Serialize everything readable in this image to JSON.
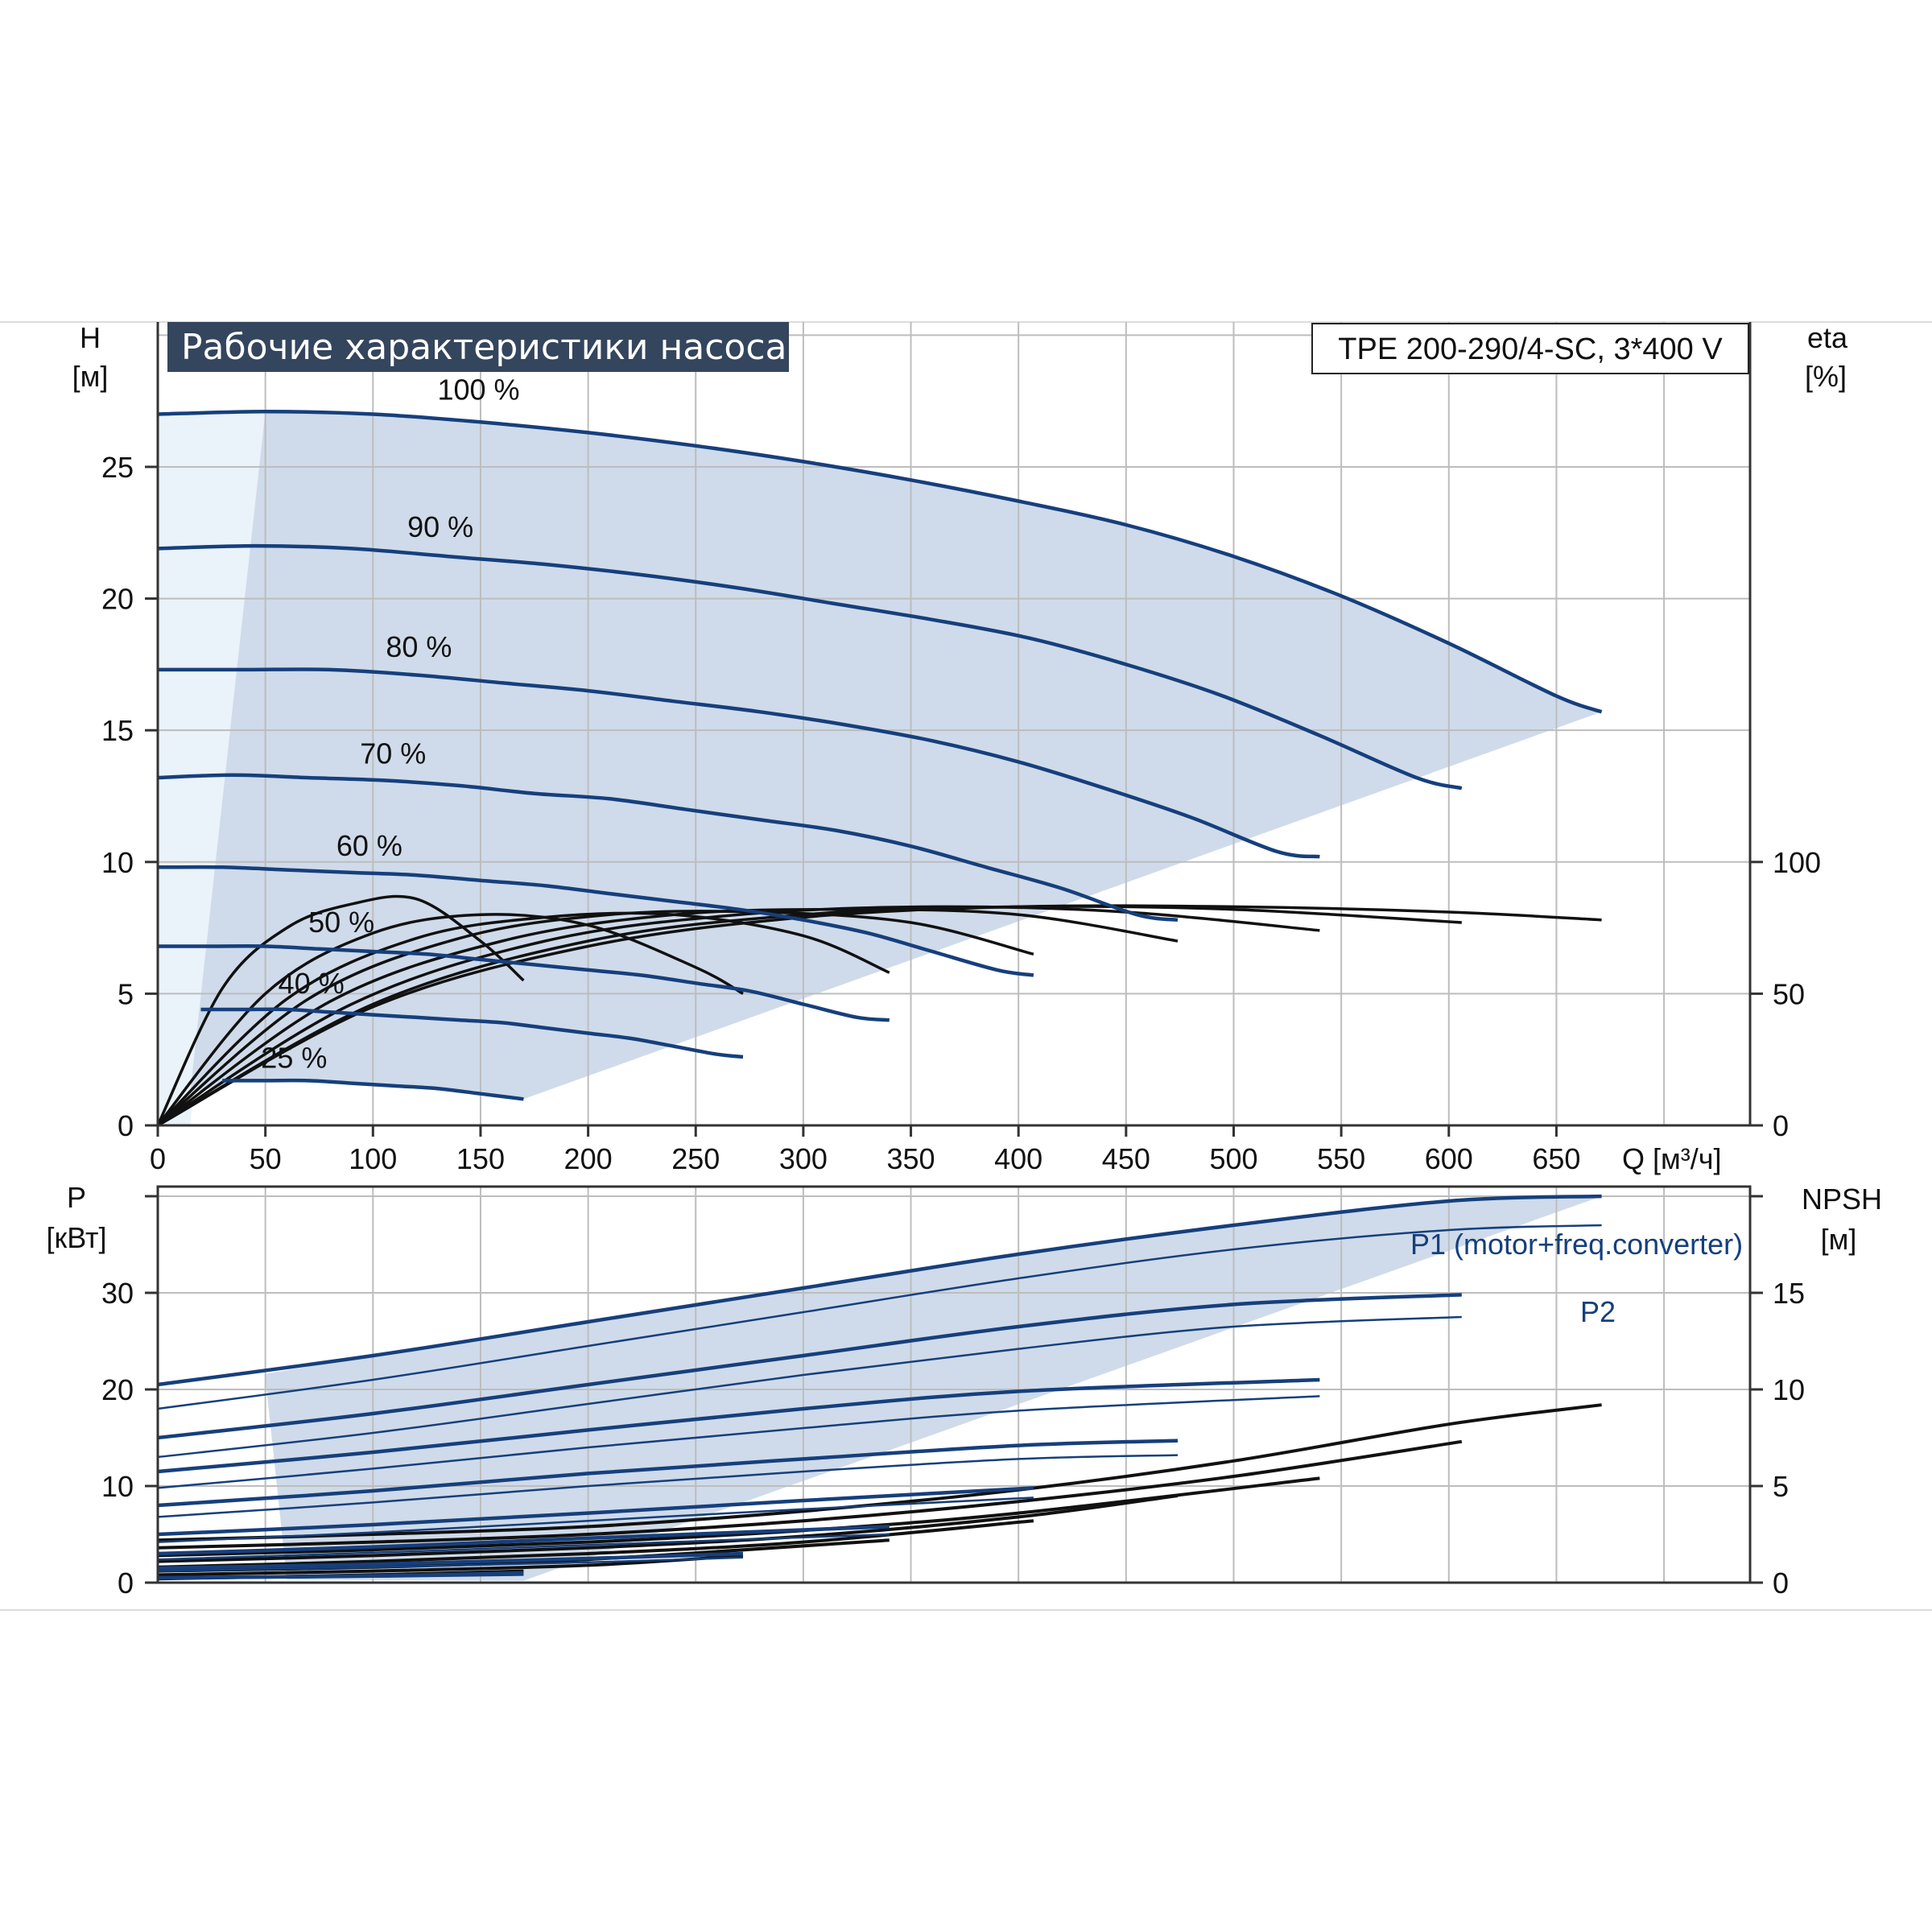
{
  "title": "Рабочие характеристики насоса",
  "model": "TPE 200-290/4-SC, 3*400 V",
  "colors": {
    "curve": "#163f7c",
    "band": "#cfdbea",
    "band_light": "#eaf2fa",
    "grid": "#bdbdbd",
    "eff": "#111111",
    "title_bg": "#34455e"
  },
  "chart_data": [
    {
      "id": "head",
      "type": "line",
      "title": "Рабочие характеристики насоса",
      "xlabel": "Q [м³/ч]",
      "ylabel": "H",
      "ylabel_unit": "[м]",
      "y2label": "eta",
      "y2label_unit": "[%]",
      "xlim": [
        0,
        740
      ],
      "ylim": [
        0,
        30.5
      ],
      "x_ticks": [
        "0",
        "50",
        "100",
        "150",
        "200",
        "250",
        "300",
        "350",
        "400",
        "450",
        "500",
        "550",
        "600",
        "650"
      ],
      "y_ticks": [
        "0",
        "5",
        "10",
        "15",
        "20",
        "25"
      ],
      "y2_ticks": [
        "0",
        "50",
        "100"
      ],
      "grid": true,
      "series": [
        {
          "name": "100 %",
          "x": [
            0,
            50,
            100,
            150,
            200,
            250,
            300,
            350,
            400,
            450,
            500,
            550,
            600,
            650,
            671
          ],
          "y": [
            27.0,
            27.1,
            27.0,
            26.7,
            26.3,
            25.8,
            25.2,
            24.5,
            23.7,
            22.8,
            21.6,
            20.1,
            18.3,
            16.3,
            15.7
          ]
        },
        {
          "name": "90 %",
          "x": [
            0,
            45,
            90,
            135,
            180,
            225,
            270,
            315,
            360,
            405,
            450,
            495,
            540,
            585,
            606
          ],
          "y": [
            21.9,
            22.0,
            21.9,
            21.6,
            21.3,
            20.9,
            20.4,
            19.8,
            19.2,
            18.5,
            17.5,
            16.3,
            14.8,
            13.2,
            12.8
          ]
        },
        {
          "name": "80 %",
          "x": [
            0,
            40,
            80,
            120,
            160,
            200,
            240,
            280,
            320,
            360,
            400,
            440,
            480,
            520,
            540
          ],
          "y": [
            17.3,
            17.3,
            17.3,
            17.1,
            16.8,
            16.5,
            16.1,
            15.7,
            15.2,
            14.6,
            13.8,
            12.8,
            11.7,
            10.4,
            10.2
          ]
        },
        {
          "name": "70 %",
          "x": [
            0,
            35,
            70,
            105,
            140,
            175,
            210,
            245,
            280,
            315,
            350,
            385,
            420,
            455,
            474
          ],
          "y": [
            13.2,
            13.3,
            13.2,
            13.1,
            12.9,
            12.6,
            12.4,
            12.0,
            11.6,
            11.2,
            10.6,
            9.8,
            9.0,
            8.0,
            7.8
          ]
        },
        {
          "name": "60 %",
          "x": [
            0,
            30,
            60,
            90,
            120,
            150,
            180,
            210,
            240,
            270,
            300,
            330,
            360,
            390,
            407
          ],
          "y": [
            9.8,
            9.8,
            9.7,
            9.6,
            9.5,
            9.3,
            9.1,
            8.8,
            8.5,
            8.2,
            7.8,
            7.3,
            6.6,
            5.9,
            5.7
          ]
        },
        {
          "name": "50 %",
          "x": [
            0,
            25,
            50,
            75,
            100,
            125,
            150,
            175,
            200,
            225,
            250,
            275,
            300,
            325,
            340
          ],
          "y": [
            6.8,
            6.8,
            6.8,
            6.7,
            6.6,
            6.5,
            6.3,
            6.1,
            5.9,
            5.7,
            5.4,
            5.1,
            4.6,
            4.1,
            4.0
          ]
        },
        {
          "name": "40 %",
          "x": [
            20,
            40,
            60,
            80,
            100,
            120,
            140,
            160,
            180,
            200,
            220,
            240,
            260,
            272
          ],
          "y": [
            4.4,
            4.4,
            4.4,
            4.3,
            4.2,
            4.1,
            4.0,
            3.9,
            3.7,
            3.5,
            3.3,
            3.0,
            2.7,
            2.6
          ]
        },
        {
          "name": "25 %",
          "x": [
            30,
            50,
            70,
            90,
            110,
            130,
            150,
            170
          ],
          "y": [
            1.7,
            1.7,
            1.7,
            1.6,
            1.5,
            1.4,
            1.2,
            1.0
          ]
        }
      ],
      "efficiency_series": [
        {
          "x": [
            0,
            100,
            200,
            300,
            400,
            500,
            600,
            671
          ],
          "y": [
            0,
            45,
            68,
            79,
            83,
            83,
            81,
            78
          ]
        },
        {
          "x": [
            0,
            100,
            200,
            300,
            400,
            500,
            606
          ],
          "y": [
            0,
            46,
            70,
            80,
            83,
            82,
            77
          ]
        },
        {
          "x": [
            0,
            90,
            180,
            270,
            360,
            450,
            540
          ],
          "y": [
            0,
            46,
            70,
            80,
            83,
            81,
            74
          ]
        },
        {
          "x": [
            0,
            80,
            160,
            240,
            320,
            400,
            474
          ],
          "y": [
            0,
            47,
            70,
            80,
            82,
            80,
            70
          ]
        },
        {
          "x": [
            0,
            70,
            140,
            210,
            280,
            350,
            407
          ],
          "y": [
            0,
            48,
            71,
            80,
            81,
            77,
            65
          ]
        },
        {
          "x": [
            0,
            60,
            120,
            180,
            240,
            300,
            340
          ],
          "y": [
            0,
            48,
            71,
            79,
            80,
            72,
            58
          ]
        },
        {
          "x": [
            0,
            50,
            100,
            150,
            200,
            250,
            272
          ],
          "y": [
            0,
            50,
            73,
            80,
            76,
            60,
            50
          ]
        },
        {
          "x": [
            0,
            30,
            60,
            90,
            120,
            150,
            170
          ],
          "y": [
            0,
            52,
            75,
            84,
            86,
            70,
            55
          ]
        }
      ]
    },
    {
      "id": "power",
      "type": "line",
      "ylabel": "P",
      "ylabel_unit": "[кВт]",
      "y2label": "NPSH",
      "y2label_unit": "[м]",
      "xlim": [
        0,
        740
      ],
      "ylim": [
        0,
        41
      ],
      "y_ticks": [
        "0",
        "10",
        "20",
        "30"
      ],
      "y2_ticks": [
        "0",
        "5",
        "10",
        "15"
      ],
      "grid": true,
      "legend_labels": [
        "P1 (motor+freq.converter)",
        "P2"
      ],
      "p1_series": [
        {
          "x": [
            0,
            100,
            200,
            300,
            400,
            500,
            600,
            671
          ],
          "y": [
            20.5,
            23.5,
            27.0,
            30.5,
            34.0,
            37.0,
            39.5,
            40.0
          ]
        },
        {
          "x": [
            0,
            100,
            200,
            300,
            400,
            500,
            606
          ],
          "y": [
            15.0,
            17.5,
            20.5,
            23.5,
            26.5,
            28.8,
            29.8
          ]
        },
        {
          "x": [
            0,
            100,
            200,
            300,
            400,
            540
          ],
          "y": [
            11.5,
            13.5,
            15.8,
            18.0,
            19.8,
            21.0
          ]
        },
        {
          "x": [
            0,
            100,
            200,
            300,
            400,
            474
          ],
          "y": [
            8.0,
            9.5,
            11.3,
            12.8,
            14.2,
            14.7
          ]
        },
        {
          "x": [
            0,
            100,
            200,
            300,
            407
          ],
          "y": [
            5.0,
            6.0,
            7.2,
            8.5,
            9.8
          ]
        },
        {
          "x": [
            0,
            100,
            200,
            340
          ],
          "y": [
            3.0,
            3.7,
            4.6,
            5.8
          ]
        },
        {
          "x": [
            0,
            100,
            200,
            272
          ],
          "y": [
            1.5,
            1.9,
            2.5,
            3.0
          ]
        },
        {
          "x": [
            0,
            100,
            170
          ],
          "y": [
            0.5,
            0.7,
            1.0
          ]
        }
      ],
      "p2_series": [
        {
          "x": [
            0,
            100,
            200,
            300,
            400,
            500,
            600,
            671
          ],
          "y": [
            18.0,
            21.0,
            24.5,
            28.0,
            31.5,
            34.5,
            36.5,
            37.0
          ]
        },
        {
          "x": [
            0,
            100,
            200,
            300,
            400,
            500,
            606
          ],
          "y": [
            13.0,
            15.5,
            18.5,
            21.5,
            24.2,
            26.5,
            27.5
          ]
        },
        {
          "x": [
            0,
            100,
            200,
            300,
            400,
            540
          ],
          "y": [
            9.8,
            11.8,
            14.0,
            16.0,
            17.8,
            19.3
          ]
        },
        {
          "x": [
            0,
            100,
            200,
            300,
            400,
            474
          ],
          "y": [
            6.8,
            8.3,
            10.0,
            11.5,
            12.8,
            13.2
          ]
        },
        {
          "x": [
            0,
            100,
            200,
            300,
            407
          ],
          "y": [
            4.2,
            5.2,
            6.4,
            7.6,
            8.8
          ]
        },
        {
          "x": [
            0,
            100,
            200,
            340
          ],
          "y": [
            2.4,
            3.1,
            3.9,
            5.0
          ]
        },
        {
          "x": [
            0,
            100,
            200,
            272
          ],
          "y": [
            1.2,
            1.6,
            2.1,
            2.6
          ]
        },
        {
          "x": [
            0,
            100,
            170
          ],
          "y": [
            0.4,
            0.6,
            0.8
          ]
        }
      ],
      "npsh_series": [
        {
          "x": [
            0,
            100,
            200,
            300,
            400,
            500,
            600,
            671
          ],
          "y": [
            2.2,
            2.5,
            2.9,
            3.7,
            4.8,
            6.3,
            8.2,
            9.2
          ]
        },
        {
          "x": [
            0,
            100,
            200,
            300,
            400,
            500,
            606
          ],
          "y": [
            1.8,
            2.1,
            2.5,
            3.2,
            4.2,
            5.5,
            7.3
          ]
        },
        {
          "x": [
            0,
            100,
            200,
            300,
            400,
            540
          ],
          "y": [
            1.4,
            1.7,
            2.1,
            2.7,
            3.6,
            5.4
          ]
        },
        {
          "x": [
            0,
            100,
            200,
            300,
            400,
            474
          ],
          "y": [
            1.1,
            1.4,
            1.8,
            2.4,
            3.4,
            4.5
          ]
        },
        {
          "x": [
            0,
            100,
            200,
            300,
            407
          ],
          "y": [
            0.8,
            1.1,
            1.5,
            2.1,
            3.2
          ]
        },
        {
          "x": [
            0,
            100,
            200,
            340
          ],
          "y": [
            0.6,
            0.8,
            1.2,
            2.2
          ]
        },
        {
          "x": [
            0,
            100,
            200,
            272
          ],
          "y": [
            0.4,
            0.6,
            0.9,
            1.4
          ]
        },
        {
          "x": [
            0,
            100,
            170
          ],
          "y": [
            0.2,
            0.4,
            0.6
          ]
        }
      ]
    }
  ]
}
